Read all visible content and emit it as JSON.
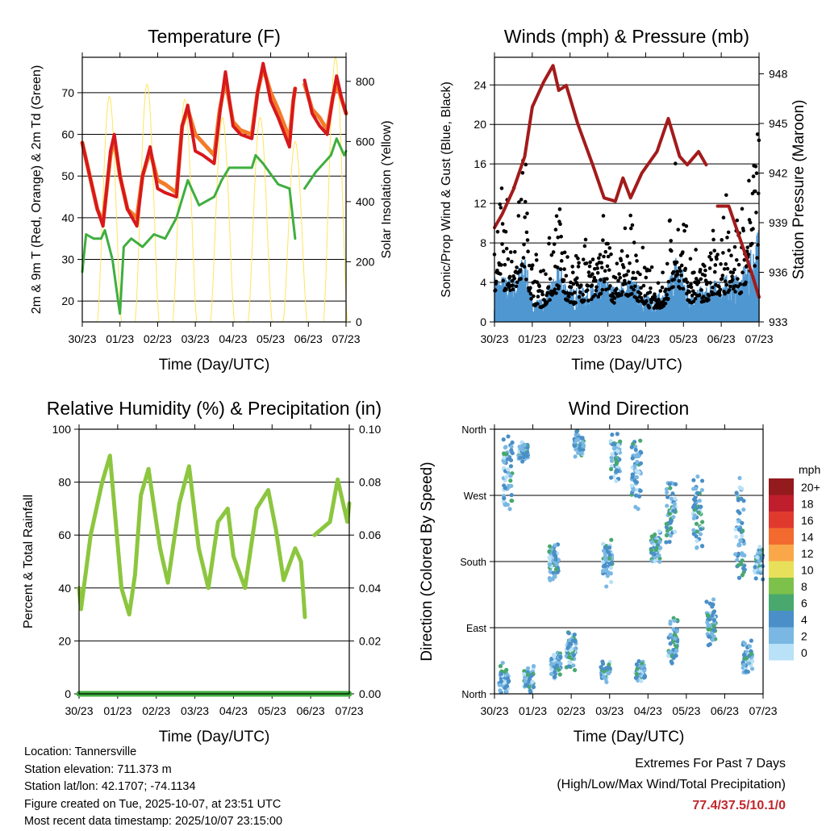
{
  "info": {
    "location": "Location: Tannersville",
    "elevation": "Station elevation: 711.373 m",
    "latlon": "Station lat/lon: 42.1707; -74.1134",
    "created": "Figure created on Tue, 2025-10-07, at 23:51 UTC",
    "recent": "Most recent data timestamp: 2025/10/07 23:15:00"
  },
  "extremes": {
    "title": "Extremes For Past 7 Days",
    "subtitle": "(High/Low/Max Wind/Total Precipitation)",
    "value": "77.4/37.5/10.1/0",
    "color": "#c1272d"
  },
  "chart_data": [
    {
      "type": "line",
      "title": "Temperature (F)",
      "xlabel": "Time (Day/UTC)",
      "ylabel": "2m & 9m T (Red, Orange) & 2m Td (Green)",
      "ylabel_right": "Solar Insolation (Yellow)",
      "xticks": [
        "30/23",
        "01/23",
        "02/23",
        "03/23",
        "04/23",
        "05/23",
        "06/23",
        "07/23"
      ],
      "xlim": [
        0,
        7
      ],
      "ylim": [
        15,
        78.5
      ],
      "yticks": [
        20,
        30,
        40,
        50,
        60,
        70
      ],
      "ylim_right": [
        0,
        880
      ],
      "yticks_right": [
        0,
        200,
        400,
        600,
        800
      ],
      "series": [
        {
          "name": "9m T",
          "color": "#f47b2a",
          "x": [
            0,
            0.2,
            0.4,
            0.55,
            0.75,
            0.85,
            1.0,
            1.2,
            1.45,
            1.6,
            1.8,
            2.0,
            2.2,
            2.5,
            2.65,
            2.8,
            3.0,
            3.2,
            3.5,
            3.65,
            3.8,
            4.0,
            4.2,
            4.5,
            4.65,
            4.8,
            5.0,
            5.2,
            5.5,
            5.6,
            5.65,
            null,
            5.9,
            6.1,
            6.3,
            6.5,
            6.65,
            6.75,
            6.9,
            7.0
          ],
          "y": [
            58,
            50,
            42,
            39,
            55,
            59,
            50,
            42,
            40,
            50,
            56,
            49,
            48,
            46,
            62,
            66,
            60,
            58,
            55,
            66,
            73,
            63,
            61,
            60,
            70,
            76,
            70,
            66,
            59,
            68,
            71,
            null,
            72,
            66,
            64,
            61,
            69,
            72,
            68,
            65
          ]
        },
        {
          "name": "2m T",
          "color": "#d7191c",
          "x": [
            0,
            0.2,
            0.4,
            0.55,
            0.75,
            0.85,
            1.0,
            1.2,
            1.45,
            1.6,
            1.8,
            2.0,
            2.2,
            2.5,
            2.65,
            2.8,
            3.0,
            3.2,
            3.5,
            3.65,
            3.8,
            4.0,
            4.2,
            4.5,
            4.65,
            4.8,
            5.0,
            5.2,
            5.5,
            5.6,
            5.65,
            null,
            5.9,
            6.1,
            6.3,
            6.5,
            6.65,
            6.75,
            6.9,
            7.0
          ],
          "y": [
            58,
            50,
            42,
            38,
            56,
            60,
            50,
            42,
            38,
            50,
            57,
            47,
            46,
            45,
            62,
            67,
            56,
            55,
            53,
            65,
            75,
            62,
            60,
            59,
            70,
            77,
            68,
            64,
            57,
            68,
            71,
            null,
            73,
            65,
            62,
            60,
            69,
            74,
            68,
            65
          ]
        },
        {
          "name": "2m Td",
          "color": "#3fae3f",
          "x": [
            0,
            0.1,
            0.3,
            0.5,
            0.6,
            0.8,
            0.95,
            1.0,
            1.1,
            1.3,
            1.6,
            1.9,
            2.2,
            2.5,
            2.8,
            3.1,
            3.5,
            3.7,
            3.9,
            4.5,
            4.6,
            4.8,
            5.2,
            5.5,
            5.65,
            null,
            5.9,
            6.2,
            6.6,
            6.75,
            6.95,
            7.0
          ],
          "y": [
            27,
            36,
            35,
            35,
            37,
            30,
            20,
            17,
            33,
            35,
            33,
            36,
            35,
            40,
            49,
            43,
            45,
            49,
            52,
            52,
            55,
            53,
            48,
            47,
            35,
            null,
            47,
            51,
            55,
            59,
            55,
            56
          ]
        },
        {
          "name": "Solar",
          "color": "#ffe45c",
          "axis": "right",
          "peaks_x": [
            0.72,
            1.72,
            2.72,
            3.72,
            4.72,
            5.65,
            6.72
          ],
          "peaks_y": [
            750,
            790,
            740,
            680,
            680,
            600,
            880
          ]
        }
      ]
    },
    {
      "type": "scatter",
      "title": "Winds (mph) & Pressure (mb)",
      "xlabel": "Time (Day/UTC)",
      "ylabel": "Sonic/Prop Wind & Gust (Blue, Black)",
      "ylabel_right": "Station Pressure (Maroon)",
      "xticks": [
        "30/23",
        "01/23",
        "02/23",
        "03/23",
        "04/23",
        "05/23",
        "06/23",
        "07/23"
      ],
      "xlim": [
        0,
        7
      ],
      "ylim": [
        0,
        26.8
      ],
      "yticks": [
        0,
        4,
        8,
        12,
        16,
        20,
        24
      ],
      "ylim_right": [
        933,
        949
      ],
      "yticks_right": [
        933,
        936,
        939,
        942,
        945,
        948
      ],
      "pressure": {
        "color": "#a31b1b",
        "x": [
          0,
          0.2,
          0.5,
          0.8,
          1.0,
          1.3,
          1.55,
          1.7,
          1.9,
          2.2,
          2.6,
          2.9,
          3.2,
          3.4,
          3.6,
          3.9,
          4.3,
          4.6,
          4.9,
          5.1,
          5.4,
          5.6,
          null,
          5.9,
          6.2,
          6.5,
          6.8,
          7.0
        ],
        "y": [
          938.7,
          939.5,
          941,
          943,
          946,
          947.5,
          948.5,
          947,
          947.3,
          945,
          942.5,
          940.5,
          940.3,
          941.7,
          940.5,
          942,
          943.3,
          945.3,
          943,
          942.5,
          943.3,
          942.5,
          null,
          940,
          940,
          938,
          936,
          934.5
        ]
      },
      "gust_envelope": {
        "color": "#000000",
        "x": [
          0,
          0.5,
          0.8,
          1.0,
          1.3,
          1.7,
          2.0,
          2.5,
          2.9,
          3.2,
          3.6,
          4.0,
          4.5,
          4.8,
          5.2,
          5.6,
          6.0,
          6.5,
          6.9,
          7.0
        ],
        "y": [
          9,
          9,
          14,
          5,
          4,
          9,
          5,
          6,
          8,
          5,
          8,
          4,
          4,
          11,
          5,
          5,
          8,
          8,
          16,
          20
        ]
      },
      "wind_envelope": {
        "color": "#4f97d1",
        "x": [
          0,
          0.5,
          0.8,
          1.0,
          1.3,
          1.7,
          2.0,
          2.5,
          2.9,
          3.2,
          3.6,
          4.0,
          4.5,
          4.8,
          5.2,
          5.6,
          6.0,
          6.5,
          6.9,
          7.0
        ],
        "y": [
          4,
          4,
          6,
          2,
          2,
          5,
          3,
          3,
          4,
          3,
          4,
          2.5,
          2.5,
          6,
          3,
          3,
          4,
          4,
          7,
          9
        ]
      }
    },
    {
      "type": "line",
      "title": "Relative Humidity (%) & Precipitation (in)",
      "xlabel": "Time (Day/UTC)",
      "ylabel": "Percent & Total Rainfall",
      "xticks": [
        "30/23",
        "01/23",
        "02/23",
        "03/23",
        "04/23",
        "05/23",
        "06/23",
        "07/23"
      ],
      "xlim": [
        0,
        7
      ],
      "ylim": [
        0,
        100
      ],
      "yticks": [
        0,
        20,
        40,
        60,
        80,
        100
      ],
      "ylim_right": [
        0,
        0.1
      ],
      "yticks_right": [
        "0.00",
        "0.02",
        "0.04",
        "0.06",
        "0.08",
        "0.10"
      ],
      "series": [
        {
          "name": "RH",
          "color": "#8cc63f",
          "x": [
            0,
            0.05,
            0.3,
            0.6,
            0.8,
            1.1,
            1.3,
            1.45,
            1.6,
            1.8,
            2.1,
            2.3,
            2.6,
            2.85,
            3.1,
            3.35,
            3.6,
            3.85,
            4.0,
            4.3,
            4.6,
            4.9,
            5.1,
            5.3,
            5.6,
            5.75,
            5.85,
            null,
            6.1,
            6.5,
            6.7,
            6.95,
            7.0
          ],
          "y": [
            40,
            32,
            60,
            80,
            90,
            40,
            30,
            45,
            75,
            85,
            55,
            42,
            72,
            86,
            55,
            40,
            65,
            70,
            52,
            40,
            70,
            77,
            62,
            43,
            55,
            50,
            29,
            null,
            60,
            65,
            81,
            65,
            72
          ]
        },
        {
          "name": "Precipitation",
          "color": "#3fae3f",
          "x": [
            0,
            7
          ],
          "y": [
            0,
            0
          ]
        }
      ]
    },
    {
      "type": "scatter",
      "title": "Wind Direction",
      "xlabel": "Time (Day/UTC)",
      "ylabel": "Direction (Colored By Speed)",
      "xticks": [
        "30/23",
        "01/23",
        "02/23",
        "03/23",
        "04/23",
        "05/23",
        "06/23",
        "07/23"
      ],
      "xlim": [
        0,
        7
      ],
      "yticks": [
        "North",
        "East",
        "South",
        "West",
        "North"
      ],
      "ylim": [
        0,
        360
      ],
      "legend": {
        "title": "mph",
        "labels": [
          "20+",
          "18",
          "16",
          "14",
          "12",
          "10",
          "8",
          "6",
          "4",
          "2",
          "0"
        ],
        "colors": [
          "#931a1d",
          "#bf1e2d",
          "#e03a2f",
          "#f26a2e",
          "#faa74a",
          "#e8e05a",
          "#7dc14b",
          "#48a86e",
          "#4a8fc7",
          "#7ab8e3",
          "#b9e1f7"
        ]
      },
      "clusters": [
        {
          "x": 0.35,
          "dir": 300,
          "spread": 60
        },
        {
          "x": 0.25,
          "dir": 20,
          "spread": 25
        },
        {
          "x": 0.75,
          "dir": 330,
          "spread": 15
        },
        {
          "x": 0.9,
          "dir": 20,
          "spread": 20
        },
        {
          "x": 1.6,
          "dir": 40,
          "spread": 25
        },
        {
          "x": 1.55,
          "dir": 180,
          "spread": 30
        },
        {
          "x": 2.0,
          "dir": 60,
          "spread": 30
        },
        {
          "x": 2.2,
          "dir": 340,
          "spread": 20
        },
        {
          "x": 2.9,
          "dir": 30,
          "spread": 15
        },
        {
          "x": 2.95,
          "dir": 180,
          "spread": 35
        },
        {
          "x": 3.15,
          "dir": 320,
          "spread": 40
        },
        {
          "x": 3.8,
          "dir": 30,
          "spread": 15
        },
        {
          "x": 3.7,
          "dir": 300,
          "spread": 50
        },
        {
          "x": 4.2,
          "dir": 200,
          "spread": 30
        },
        {
          "x": 4.6,
          "dir": 250,
          "spread": 50
        },
        {
          "x": 4.65,
          "dir": 70,
          "spread": 40
        },
        {
          "x": 5.3,
          "dir": 250,
          "spread": 60
        },
        {
          "x": 5.65,
          "dir": 100,
          "spread": 40
        },
        {
          "x": 6.4,
          "dir": 220,
          "spread": 80
        },
        {
          "x": 6.6,
          "dir": 50,
          "spread": 30
        },
        {
          "x": 6.9,
          "dir": 180,
          "spread": 25
        }
      ]
    }
  ]
}
